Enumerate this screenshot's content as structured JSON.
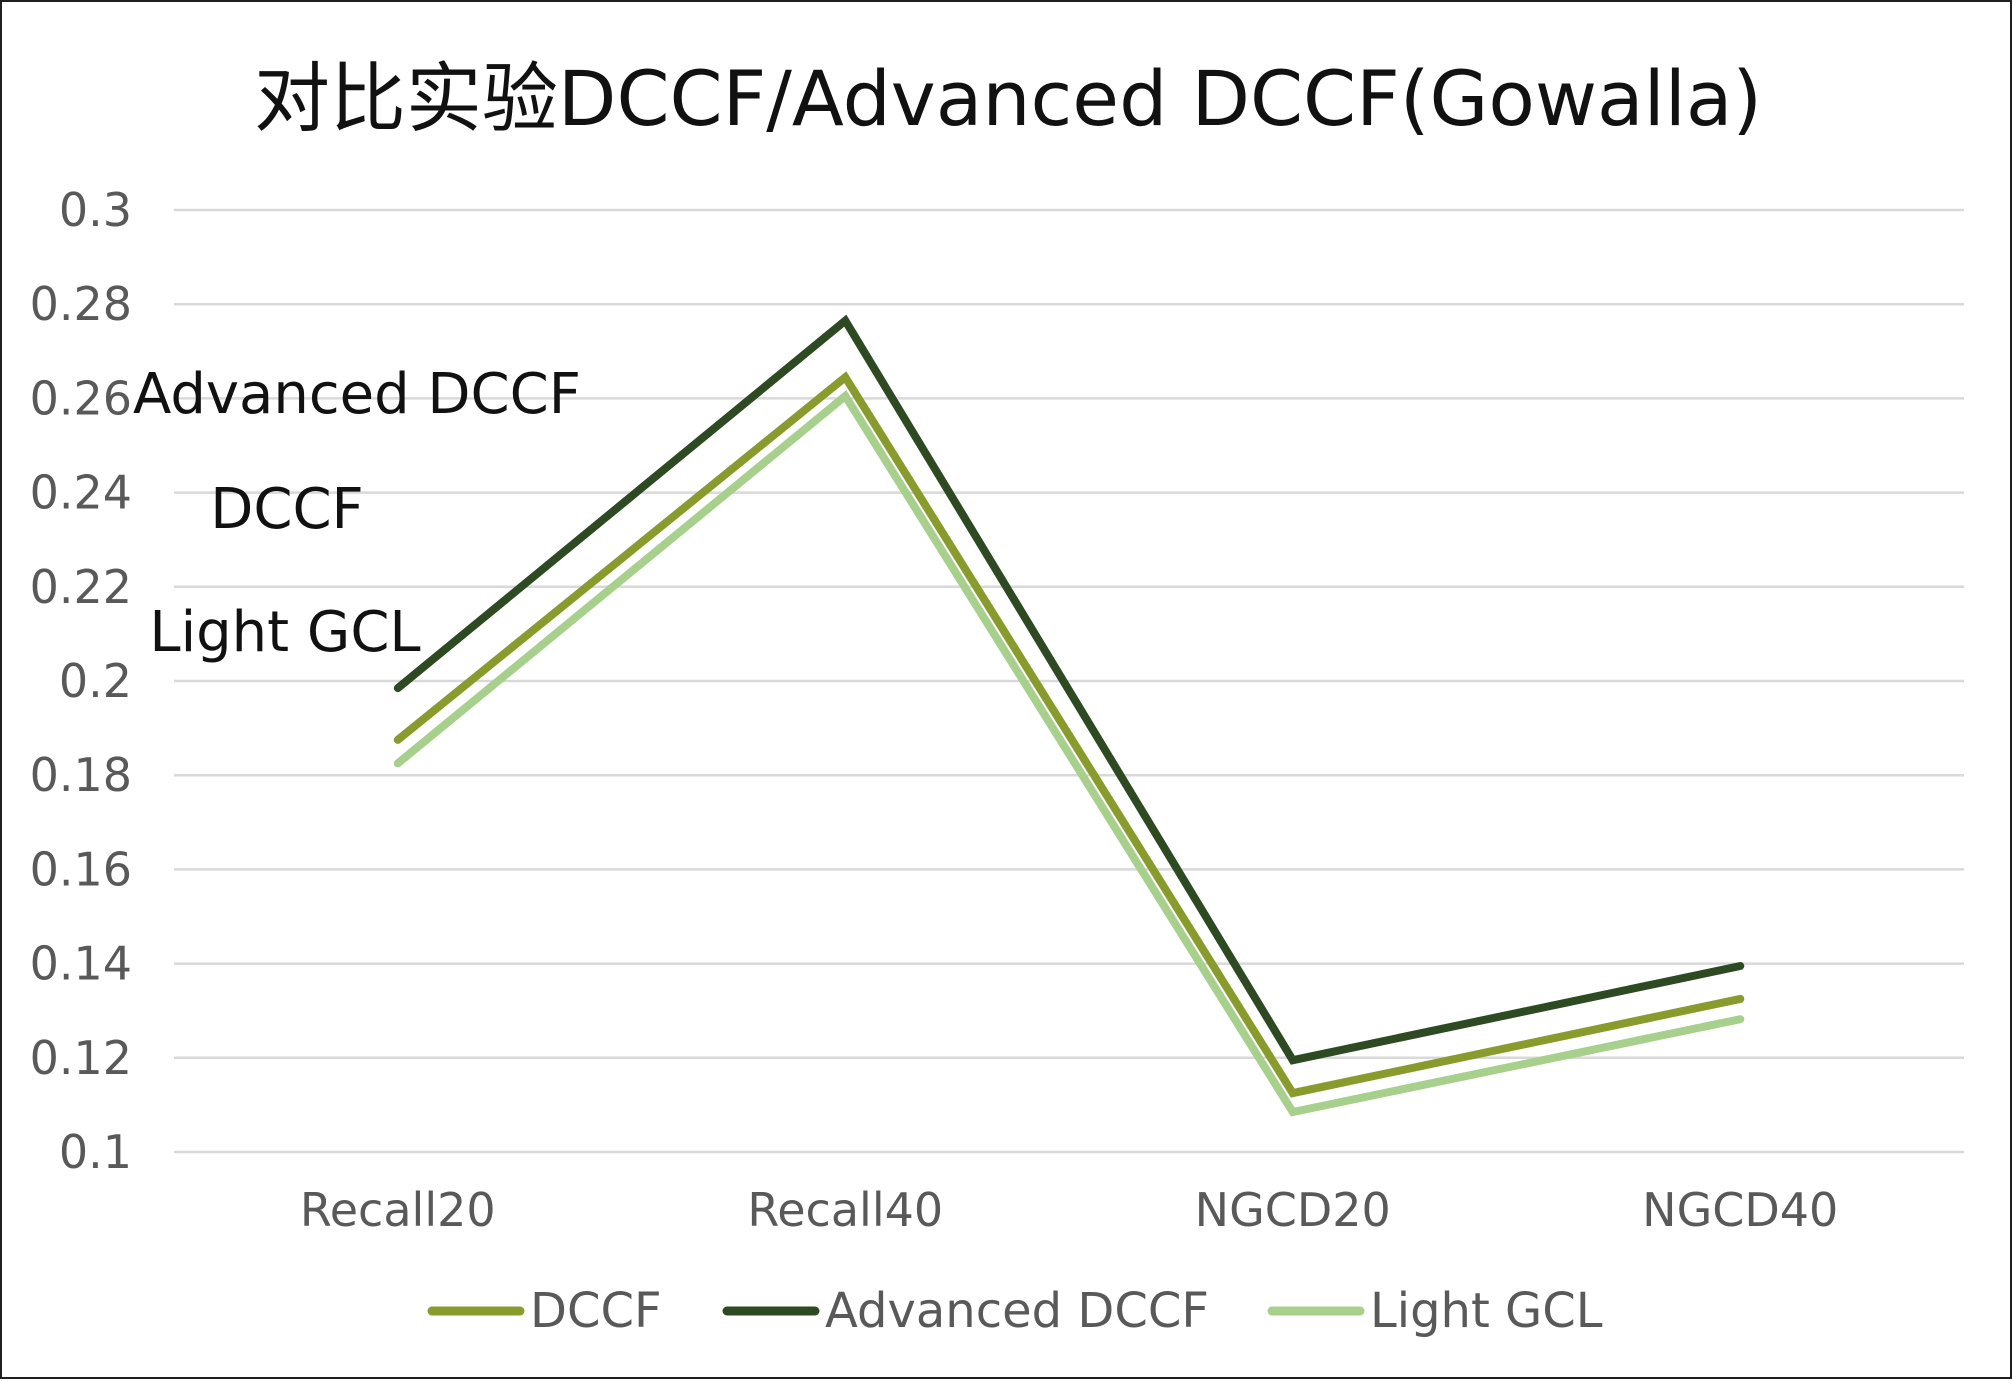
{
  "chart_data": {
    "type": "line",
    "title": "对比实验DCCF/Advanced DCCF(Gowalla)",
    "xlabel": "",
    "ylabel": "",
    "categories": [
      "Recall20",
      "Recall40",
      "NGCD20",
      "NGCD40"
    ],
    "ylim": [
      0.1,
      0.3
    ],
    "yticks": [
      "0.1",
      "0.12",
      "0.14",
      "0.16",
      "0.18",
      "0.2",
      "0.22",
      "0.24",
      "0.26",
      "0.28",
      "0.3"
    ],
    "grid": true,
    "legend_position": "bottom",
    "series": [
      {
        "name": "DCCF",
        "color": "#8a9b2e",
        "values": [
          0.1875,
          0.2645,
          0.1125,
          0.1325
        ]
      },
      {
        "name": "Advanced DCCF",
        "color": "#2d4a22",
        "values": [
          0.1985,
          0.2765,
          0.1195,
          0.1395
        ]
      },
      {
        "name": "Light GCL",
        "color": "#a8d08d",
        "values": [
          0.1825,
          0.2605,
          0.1085,
          0.1282
        ]
      }
    ],
    "annotations": [
      "Advanced DCCF",
      "DCCF",
      "Light GCL"
    ]
  }
}
